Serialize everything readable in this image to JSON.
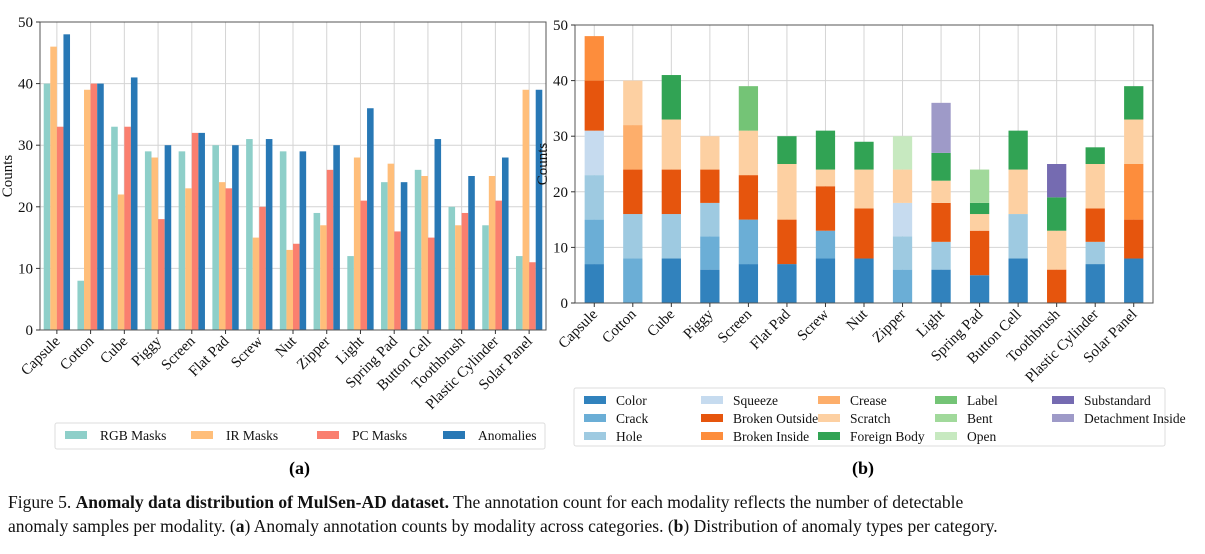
{
  "chart_data": [
    {
      "type": "bar",
      "panel_label": "(a)",
      "ylabel": "Counts",
      "ylim": [
        0,
        50
      ],
      "yticks": [
        0,
        10,
        20,
        30,
        40,
        50
      ],
      "grid": true,
      "legend_placement": "bottom",
      "categories": [
        "Capsule",
        "Cotton",
        "Cube",
        "Piggy",
        "Screen",
        "Flat Pad",
        "Screw",
        "Nut",
        "Zipper",
        "Light",
        "Spring Pad",
        "Button Cell",
        "Toothbrush",
        "Plastic Cylinder",
        "Solar Panel"
      ],
      "series": [
        {
          "name": "RGB Masks",
          "color": "#8ecfc9",
          "values": [
            40,
            8,
            33,
            29,
            29,
            30,
            31,
            29,
            19,
            12,
            24,
            26,
            20,
            17,
            12
          ]
        },
        {
          "name": "IR Masks",
          "color": "#ffbe7a",
          "values": [
            46,
            39,
            22,
            28,
            23,
            24,
            15,
            13,
            17,
            28,
            27,
            25,
            17,
            25,
            39
          ]
        },
        {
          "name": "PC Masks",
          "color": "#fa7f6f",
          "values": [
            33,
            40,
            33,
            18,
            32,
            23,
            20,
            14,
            26,
            21,
            16,
            15,
            19,
            21,
            11
          ]
        },
        {
          "name": "Anomalies",
          "color": "#2878b5",
          "values": [
            48,
            40,
            41,
            30,
            32,
            30,
            31,
            29,
            30,
            36,
            24,
            31,
            25,
            28,
            39
          ]
        }
      ]
    },
    {
      "type": "bar",
      "stacked": true,
      "panel_label": "(b)",
      "ylabel": "Counts",
      "ylim": [
        0,
        50
      ],
      "yticks": [
        0,
        10,
        20,
        30,
        40,
        50
      ],
      "grid": true,
      "legend_placement": "bottom",
      "categories": [
        "Capsule",
        "Cotton",
        "Cube",
        "Piggy",
        "Screen",
        "Flat Pad",
        "Screw",
        "Nut",
        "Zipper",
        "Light",
        "Spring Pad",
        "Button Cell",
        "Toothbrush",
        "Plastic Cylinder",
        "Solar Panel"
      ],
      "series": [
        {
          "name": "Color",
          "color": "#3182bd",
          "values": [
            7,
            0,
            8,
            6,
            7,
            7,
            8,
            8,
            0,
            6,
            5,
            8,
            0,
            7,
            8
          ]
        },
        {
          "name": "Crack",
          "color": "#6baed6",
          "values": [
            8,
            8,
            0,
            6,
            8,
            0,
            5,
            0,
            6,
            0,
            0,
            0,
            0,
            0,
            0
          ]
        },
        {
          "name": "Hole",
          "color": "#9ecae1",
          "values": [
            8,
            8,
            8,
            6,
            0,
            0,
            0,
            0,
            6,
            5,
            0,
            8,
            0,
            4,
            0
          ]
        },
        {
          "name": "Squeeze",
          "color": "#c6dbef",
          "values": [
            8,
            0,
            0,
            0,
            0,
            0,
            0,
            0,
            6,
            0,
            0,
            0,
            0,
            0,
            0
          ]
        },
        {
          "name": "Broken Outside",
          "color": "#e6550d",
          "values": [
            9,
            8,
            8,
            6,
            8,
            8,
            8,
            9,
            0,
            7,
            8,
            0,
            6,
            6,
            7
          ]
        },
        {
          "name": "Broken Inside",
          "color": "#fd8d3c",
          "values": [
            8,
            0,
            0,
            0,
            0,
            0,
            0,
            0,
            0,
            0,
            0,
            0,
            0,
            0,
            10
          ]
        },
        {
          "name": "Crease",
          "color": "#fdae6b",
          "values": [
            0,
            8,
            0,
            0,
            0,
            0,
            0,
            0,
            0,
            0,
            0,
            0,
            0,
            0,
            0
          ]
        },
        {
          "name": "Scratch",
          "color": "#fdd0a2",
          "values": [
            0,
            8,
            9,
            6,
            8,
            10,
            3,
            7,
            6,
            4,
            3,
            8,
            7,
            8,
            8
          ]
        },
        {
          "name": "Foreign Body",
          "color": "#31a354",
          "values": [
            0,
            0,
            8,
            0,
            0,
            5,
            7,
            5,
            0,
            5,
            2,
            7,
            6,
            3,
            6
          ]
        },
        {
          "name": "Label",
          "color": "#74c476",
          "values": [
            0,
            0,
            0,
            0,
            8,
            0,
            0,
            0,
            0,
            0,
            0,
            0,
            0,
            0,
            0
          ]
        },
        {
          "name": "Bent",
          "color": "#a1d99b",
          "values": [
            0,
            0,
            0,
            0,
            0,
            0,
            0,
            0,
            0,
            0,
            6,
            0,
            0,
            0,
            0
          ]
        },
        {
          "name": "Open",
          "color": "#c7e9c0",
          "values": [
            0,
            0,
            0,
            0,
            0,
            0,
            0,
            0,
            6,
            0,
            0,
            0,
            0,
            0,
            0
          ]
        },
        {
          "name": "Substandard",
          "color": "#756bb1",
          "values": [
            0,
            0,
            0,
            0,
            0,
            0,
            0,
            0,
            0,
            0,
            0,
            0,
            6,
            0,
            0
          ]
        },
        {
          "name": "Detachment Inside",
          "color": "#9e9ac8",
          "values": [
            0,
            0,
            0,
            0,
            0,
            0,
            0,
            0,
            0,
            9,
            0,
            0,
            0,
            0,
            0
          ]
        }
      ]
    }
  ],
  "caption": {
    "figure_label": "Figure 5.",
    "title": "Anomaly data distribution of MulSen-AD dataset.",
    "line1_rest": "The annotation count for each modality reflects the number of detectable",
    "line2_a_pre": "anomaly samples per modality. (",
    "a": "a",
    "line2_a_text": ") Anomaly annotation counts by modality across categories. (",
    "b": "b",
    "line2_b_text": ") Distribution of anomaly types per category."
  }
}
